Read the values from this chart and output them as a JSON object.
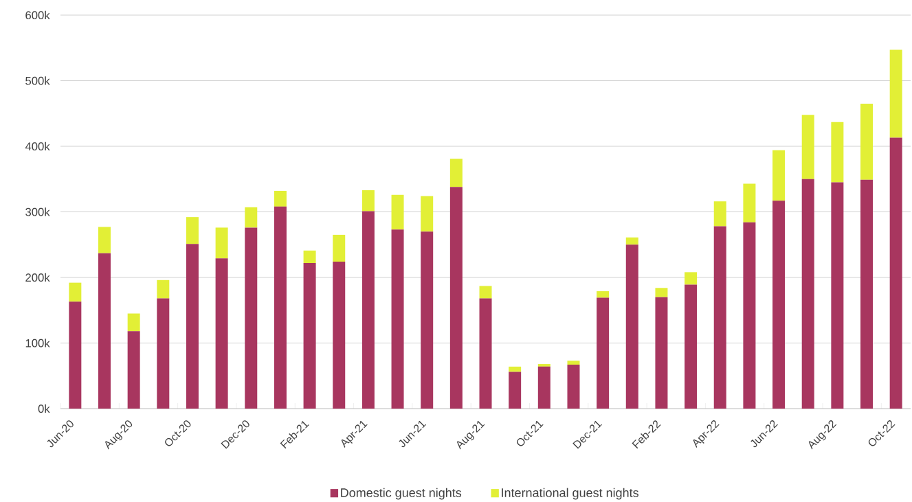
{
  "chart_data": {
    "type": "bar",
    "stacked": true,
    "categories": [
      "Jun-20",
      null,
      "Aug-20",
      null,
      "Oct-20",
      null,
      "Dec-20",
      null,
      "Feb-21",
      null,
      "Apr-21",
      null,
      "Jun-21",
      null,
      "Aug-21",
      null,
      "Oct-21",
      null,
      "Dec-21",
      null,
      "Feb-22",
      null,
      "Apr-22",
      null,
      "Jun-22",
      null,
      "Aug-22",
      null,
      "Oct-22"
    ],
    "series": [
      {
        "name": "Domestic guest nights",
        "color": "#a8365f",
        "values": [
          163000,
          237000,
          118000,
          168000,
          251000,
          229000,
          276000,
          308000,
          222000,
          224000,
          301000,
          273000,
          270000,
          338000,
          168000,
          56000,
          64000,
          67000,
          169000,
          250000,
          170000,
          189000,
          278000,
          284000,
          317000,
          350000,
          345000,
          349000,
          413000
        ]
      },
      {
        "name": "International guest nights",
        "color": "#e2ef36",
        "values": [
          29000,
          40000,
          27000,
          28000,
          41000,
          47000,
          31000,
          24000,
          19000,
          41000,
          32000,
          53000,
          54000,
          43000,
          19000,
          8000,
          4000,
          6000,
          10000,
          11000,
          14000,
          19000,
          38000,
          59000,
          77000,
          98000,
          92000,
          116000,
          134000
        ]
      }
    ],
    "ylim": [
      0,
      600000
    ],
    "yticks": [
      {
        "value": 0,
        "label": "0k"
      },
      {
        "value": 100000,
        "label": "100k"
      },
      {
        "value": 200000,
        "label": "200k"
      },
      {
        "value": 300000,
        "label": "300k"
      },
      {
        "value": 400000,
        "label": "400k"
      },
      {
        "value": 500000,
        "label": "500k"
      },
      {
        "value": 600000,
        "label": "600k"
      }
    ],
    "grid": "y",
    "legend": "bottom"
  }
}
